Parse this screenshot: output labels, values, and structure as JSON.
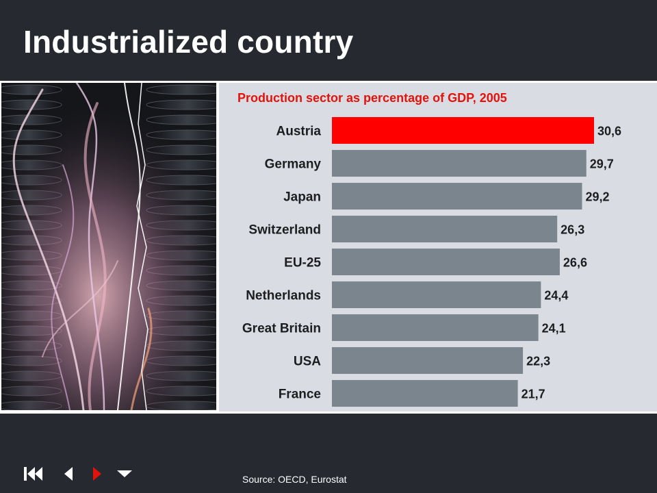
{
  "slide": {
    "title": "Industrialized country",
    "source": "Source: OECD, Eurostat"
  },
  "photo": {
    "subject": "electrical discharge over high-voltage insulators"
  },
  "colors": {
    "background": "#262a30",
    "chart_panel": "#d9dde3",
    "highlight_bar": "#ff0000",
    "default_bar": "#7b858d",
    "title_red": "#e3120b",
    "nav_arrow_red": "#e3120b"
  },
  "navigation": {
    "icons": [
      "skip-to-start-icon",
      "previous-icon",
      "next-icon",
      "menu-down-icon"
    ]
  },
  "chart_data": {
    "type": "bar",
    "orientation": "horizontal",
    "title": "Production sector as percentage of GDP, 2005",
    "categories": [
      "Austria",
      "Germany",
      "Japan",
      "Switzerland",
      "EU-25",
      "Netherlands",
      "Great Britain",
      "USA",
      "France"
    ],
    "values": [
      30.6,
      29.7,
      29.2,
      26.3,
      26.6,
      24.4,
      24.1,
      22.3,
      21.7
    ],
    "value_labels": [
      "30,6",
      "29,7",
      "29,2",
      "26,3",
      "26,6",
      "24,4",
      "24,1",
      "22,3",
      "21,7"
    ],
    "highlight": "Austria",
    "xlim": [
      0,
      30.6
    ],
    "grid": false,
    "xlabel": "",
    "ylabel": ""
  }
}
